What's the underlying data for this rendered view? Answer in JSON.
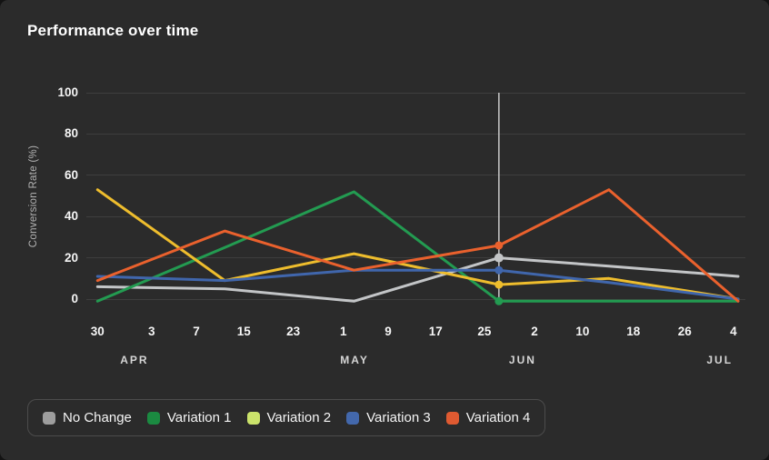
{
  "card": {
    "title": "Performance over time"
  },
  "colors": {
    "page_bg": "#131313",
    "card_bg": "#2b2b2b",
    "gridline": "#3e3e3e",
    "crosshair": "#c9c9c9",
    "legend_border": "#4c4c4c",
    "title_text": "#ffffff",
    "tick_text": "#f5f5f5",
    "month_text": "#d6d6d6",
    "axis_title_text": "#b3b3b3"
  },
  "chart_data": {
    "type": "line",
    "title": "Performance over time",
    "xlabel": "",
    "ylabel": "Conversion Rate (%)",
    "ylim": [
      0,
      100
    ],
    "y_ticks": [
      0,
      20,
      40,
      60,
      80,
      100
    ],
    "grid": "horizontal-only",
    "legend_position": "bottom-left",
    "x_tick_labels": [
      "30",
      "3",
      "7",
      "15",
      "23",
      "1",
      "9",
      "17",
      "25",
      "2",
      "10",
      "18",
      "26",
      "4"
    ],
    "x_tick_pct": [
      1.7,
      9.9,
      16.7,
      23.9,
      31.4,
      39.0,
      45.8,
      53.0,
      60.4,
      68.0,
      75.3,
      83.0,
      90.8,
      98.2
    ],
    "month_labels": [
      {
        "label": "APR",
        "x_pct": 7.3
      },
      {
        "label": "MAY",
        "x_pct": 40.7
      },
      {
        "label": "JUN",
        "x_pct": 66.2
      },
      {
        "label": "JUL",
        "x_pct": 96.1
      }
    ],
    "point_x_pct": [
      1.7,
      21.0,
      40.6,
      62.6,
      79.3,
      98.9
    ],
    "series": [
      {
        "name": "No Change",
        "line_color": "#c3c5c7",
        "swatch_color": "#9e9e9e",
        "values": [
          6,
          5,
          -1,
          20,
          16,
          11
        ]
      },
      {
        "name": "Variation 1",
        "line_color": "#239b51",
        "swatch_color": "#1b8a41",
        "values": [
          -1,
          25,
          52,
          -1,
          -1,
          -1
        ]
      },
      {
        "name": "Variation 2",
        "line_color": "#eebd2d",
        "swatch_color": "#cbe36b",
        "values": [
          53,
          9,
          22,
          7,
          10,
          0
        ]
      },
      {
        "name": "Variation 3",
        "line_color": "#4066ac",
        "swatch_color": "#4368ac",
        "values": [
          11,
          9,
          14,
          14,
          8,
          0
        ]
      },
      {
        "name": "Variation 4",
        "line_color": "#ea612d",
        "swatch_color": "#df5a31",
        "values": [
          9,
          33,
          14,
          26,
          53,
          -1
        ]
      }
    ],
    "crosshair": {
      "point_index": 3,
      "color": "#c9c9c9"
    }
  }
}
